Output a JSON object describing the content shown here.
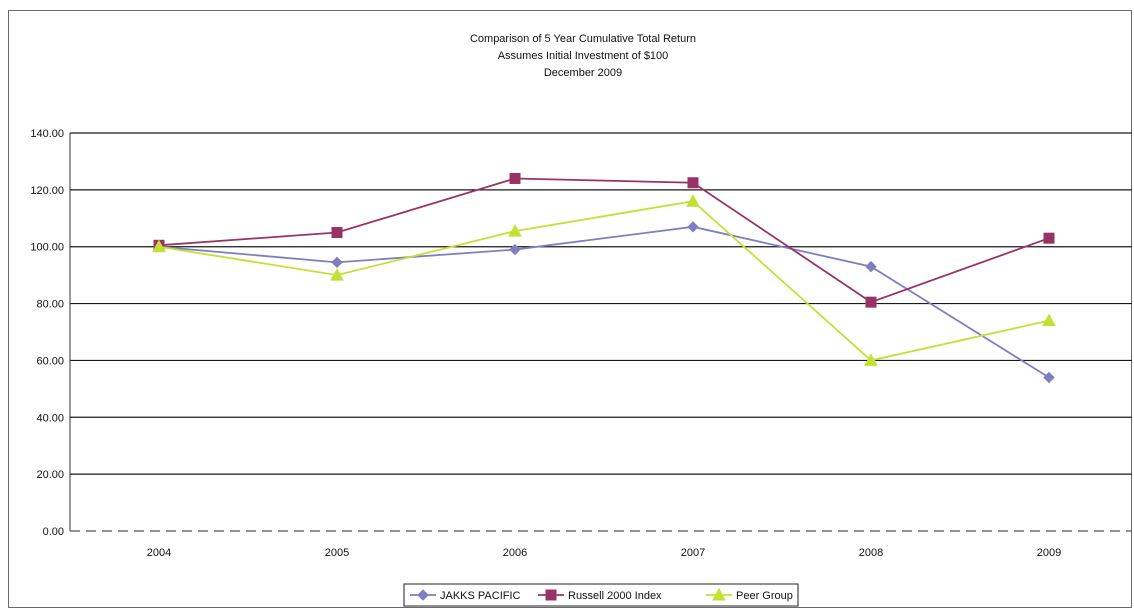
{
  "chart_data": {
    "type": "line",
    "title": "Comparison of 5 Year Cumulative Total Return",
    "subtitle": "Assumes Initial Investment of $100",
    "date_line": "December 2009",
    "categories": [
      "2004",
      "2005",
      "2006",
      "2007",
      "2008",
      "2009"
    ],
    "ylim": [
      0,
      140
    ],
    "yticks": [
      "0.00",
      "20.00",
      "40.00",
      "60.00",
      "80.00",
      "100.00",
      "120.00",
      "140.00"
    ],
    "grid": true,
    "legend_position": "bottom",
    "series": [
      {
        "name": "JAKKS PACIFIC",
        "values": [
          100,
          94.5,
          99,
          107,
          93,
          54
        ],
        "color": "#7f7fbf",
        "marker": "diamond"
      },
      {
        "name": "Russell 2000 Index",
        "values": [
          100.5,
          105,
          124,
          122.5,
          80.5,
          103
        ],
        "color": "#993366",
        "marker": "square"
      },
      {
        "name": "Peer Group",
        "values": [
          100,
          90,
          105.5,
          116,
          60,
          74
        ],
        "color": "#c4e034",
        "marker": "triangle"
      }
    ]
  }
}
